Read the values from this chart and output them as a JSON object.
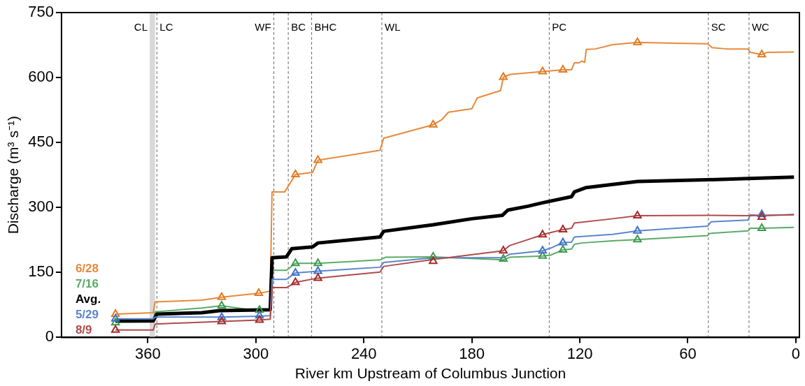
{
  "chart_data": {
    "type": "line",
    "xlabel": "River km Upstream of Columbus Junction",
    "ylabel": "Discharge (m³ s⁻¹)",
    "xlim": [
      408,
      -2
    ],
    "xticks": [
      360,
      300,
      240,
      180,
      120,
      60,
      0
    ],
    "ylim": [
      0,
      750
    ],
    "yticks": [
      0,
      150,
      300,
      450,
      600,
      750
    ],
    "grid": false,
    "legend": "bottom left",
    "marker": "none",
    "line_style": "solid",
    "bands": [
      {
        "axis": "x",
        "from": 356,
        "to": 359,
        "label": "CL",
        "color": "#d9d9d9"
      }
    ],
    "ref_lines": [
      {
        "axis": "x",
        "value": 355,
        "label": "LC",
        "line_style": "dashed"
      },
      {
        "axis": "x",
        "value": 290,
        "label": "WF",
        "line_style": "dashed"
      },
      {
        "axis": "x",
        "value": 282,
        "label": "BC",
        "line_style": "dashed"
      },
      {
        "axis": "x",
        "value": 269,
        "label": "BHC",
        "line_style": "dashed"
      },
      {
        "axis": "x",
        "value": 230,
        "label": "WL",
        "line_style": "dashed"
      },
      {
        "axis": "x",
        "value": 137,
        "label": "PC",
        "line_style": "dashed"
      },
      {
        "axis": "x",
        "value": 48.6,
        "label": "SC",
        "line_style": "dashed"
      },
      {
        "axis": "x",
        "value": 26,
        "label": "WC",
        "line_style": "dashed"
      }
    ],
    "series": [
      {
        "name": "6/28",
        "color": "#e8893a",
        "x": [
          378,
          357,
          356,
          330,
          319,
          298,
          292,
          291,
          284,
          278,
          268.5,
          265.5,
          231,
          229,
          201.5,
          196.6,
          193,
          180,
          177,
          164,
          162.5,
          159,
          140.7,
          129.4,
          124.6,
          123,
          120.4,
          119,
          117.3,
          116.4,
          111.4,
          101.8,
          88,
          65.9,
          49,
          46.5,
          38.2,
          26.6,
          25.2,
          18.9,
          16,
          1
        ],
        "values": [
          54,
          57,
          82,
          86,
          93,
          102,
          107,
          336,
          336,
          376,
          381,
          409,
          432,
          460,
          491,
          503,
          520,
          528,
          553,
          570,
          601,
          607,
          614,
          618,
          618,
          634,
          634,
          638,
          635,
          665,
          666,
          676,
          681,
          679,
          678,
          669,
          666,
          666,
          658,
          653,
          658,
          659
        ]
      },
      {
        "name": "7/16",
        "color": "#5aab66",
        "x": [
          378,
          357,
          356,
          330,
          319,
          305,
          298,
          292,
          291,
          283,
          278,
          265.5,
          231,
          228,
          201.5,
          162.5,
          159,
          140.7,
          136.3,
          129.4,
          124.6,
          123,
          119,
          101.8,
          88,
          49,
          48,
          26.6,
          25.2,
          18.9,
          1
        ],
        "values": [
          35,
          36,
          59,
          68,
          73,
          65,
          63,
          64,
          155,
          155,
          171,
          171,
          179,
          185,
          186,
          179,
          185,
          188,
          190,
          202,
          204,
          215,
          218,
          223,
          226,
          235,
          240,
          246,
          252,
          252,
          254
        ]
      },
      {
        "name": "Avg.",
        "color": "#000000",
        "x": [
          378,
          357,
          355,
          330,
          320,
          292,
          291,
          283,
          280,
          268.5,
          265.5,
          231,
          229,
          201.5,
          180,
          163,
          160,
          148.7,
          140.5,
          124.6,
          123,
          116.4,
          101.8,
          88,
          49,
          26.6,
          1
        ],
        "values": [
          38,
          38,
          54,
          57,
          62,
          64,
          184,
          186,
          205,
          209,
          218,
          232,
          245,
          260,
          274,
          282,
          294,
          303,
          311,
          325,
          336,
          346,
          353,
          360,
          364,
          367,
          370
        ]
      },
      {
        "name": "5/29",
        "color": "#5b85cc",
        "x": [
          378,
          357,
          356,
          319,
          298,
          292,
          291,
          283,
          278,
          265.5,
          231,
          229,
          201.5,
          162.5,
          159,
          140.7,
          136.3,
          129.4,
          124.6,
          123,
          101.8,
          88,
          49,
          47,
          26.6,
          25.2,
          18.9,
          1
        ],
        "values": [
          43,
          43,
          47,
          47,
          49,
          50,
          134,
          134,
          149,
          153,
          162,
          173,
          184,
          184,
          192,
          200,
          206,
          219,
          220,
          232,
          238,
          246,
          257,
          267,
          271,
          283,
          281,
          284
        ]
      },
      {
        "name": "8/9",
        "color": "#b04a4a",
        "x": [
          378,
          357,
          356,
          319,
          298,
          292,
          291,
          283,
          278,
          265.5,
          231,
          229,
          201.5,
          162.5,
          159,
          140.7,
          136.3,
          129.4,
          124.6,
          123,
          101.8,
          88,
          49,
          26.6,
          1
        ],
        "values": [
          17,
          17,
          31,
          37,
          40,
          42,
          115,
          115,
          127,
          137,
          151,
          164,
          180,
          200,
          212,
          237,
          242,
          249,
          252,
          264,
          274,
          281,
          282,
          281,
          283
        ]
      },
      {
        "type": "scatter",
        "marker": "triangle",
        "color": "#e07b20",
        "x": [
          378,
          319,
          298.4,
          278,
          265.5,
          201.5,
          162.5,
          140.7,
          129.4,
          88,
          18.9
        ],
        "values": [
          54,
          93,
          102,
          376,
          409,
          491,
          601,
          614,
          618,
          681,
          653
        ]
      },
      {
        "type": "scatter",
        "marker": "triangle",
        "color": "#3f9a4e",
        "x": [
          378,
          319,
          298,
          278,
          265.5,
          201.5,
          162.5,
          140.7,
          129.4,
          88,
          18.9
        ],
        "values": [
          34,
          73,
          63,
          171,
          171,
          186,
          181,
          188,
          202,
          226,
          252
        ]
      },
      {
        "type": "scatter",
        "marker": "triangle",
        "color": "#3f72c8",
        "x": [
          378,
          319,
          298,
          278,
          265.5,
          140.7,
          129.4,
          88,
          18.9
        ],
        "values": [
          43,
          46,
          50,
          149,
          153,
          200,
          219,
          246,
          284
        ]
      },
      {
        "type": "scatter",
        "marker": "triangle",
        "color": "#a52a2a",
        "x": [
          378,
          319,
          298,
          278,
          265.5,
          201.5,
          162.5,
          140.7,
          129.4,
          88,
          18.9
        ],
        "values": [
          17,
          37,
          40,
          127,
          137,
          176,
          200,
          237,
          249,
          281,
          278
        ]
      }
    ]
  }
}
